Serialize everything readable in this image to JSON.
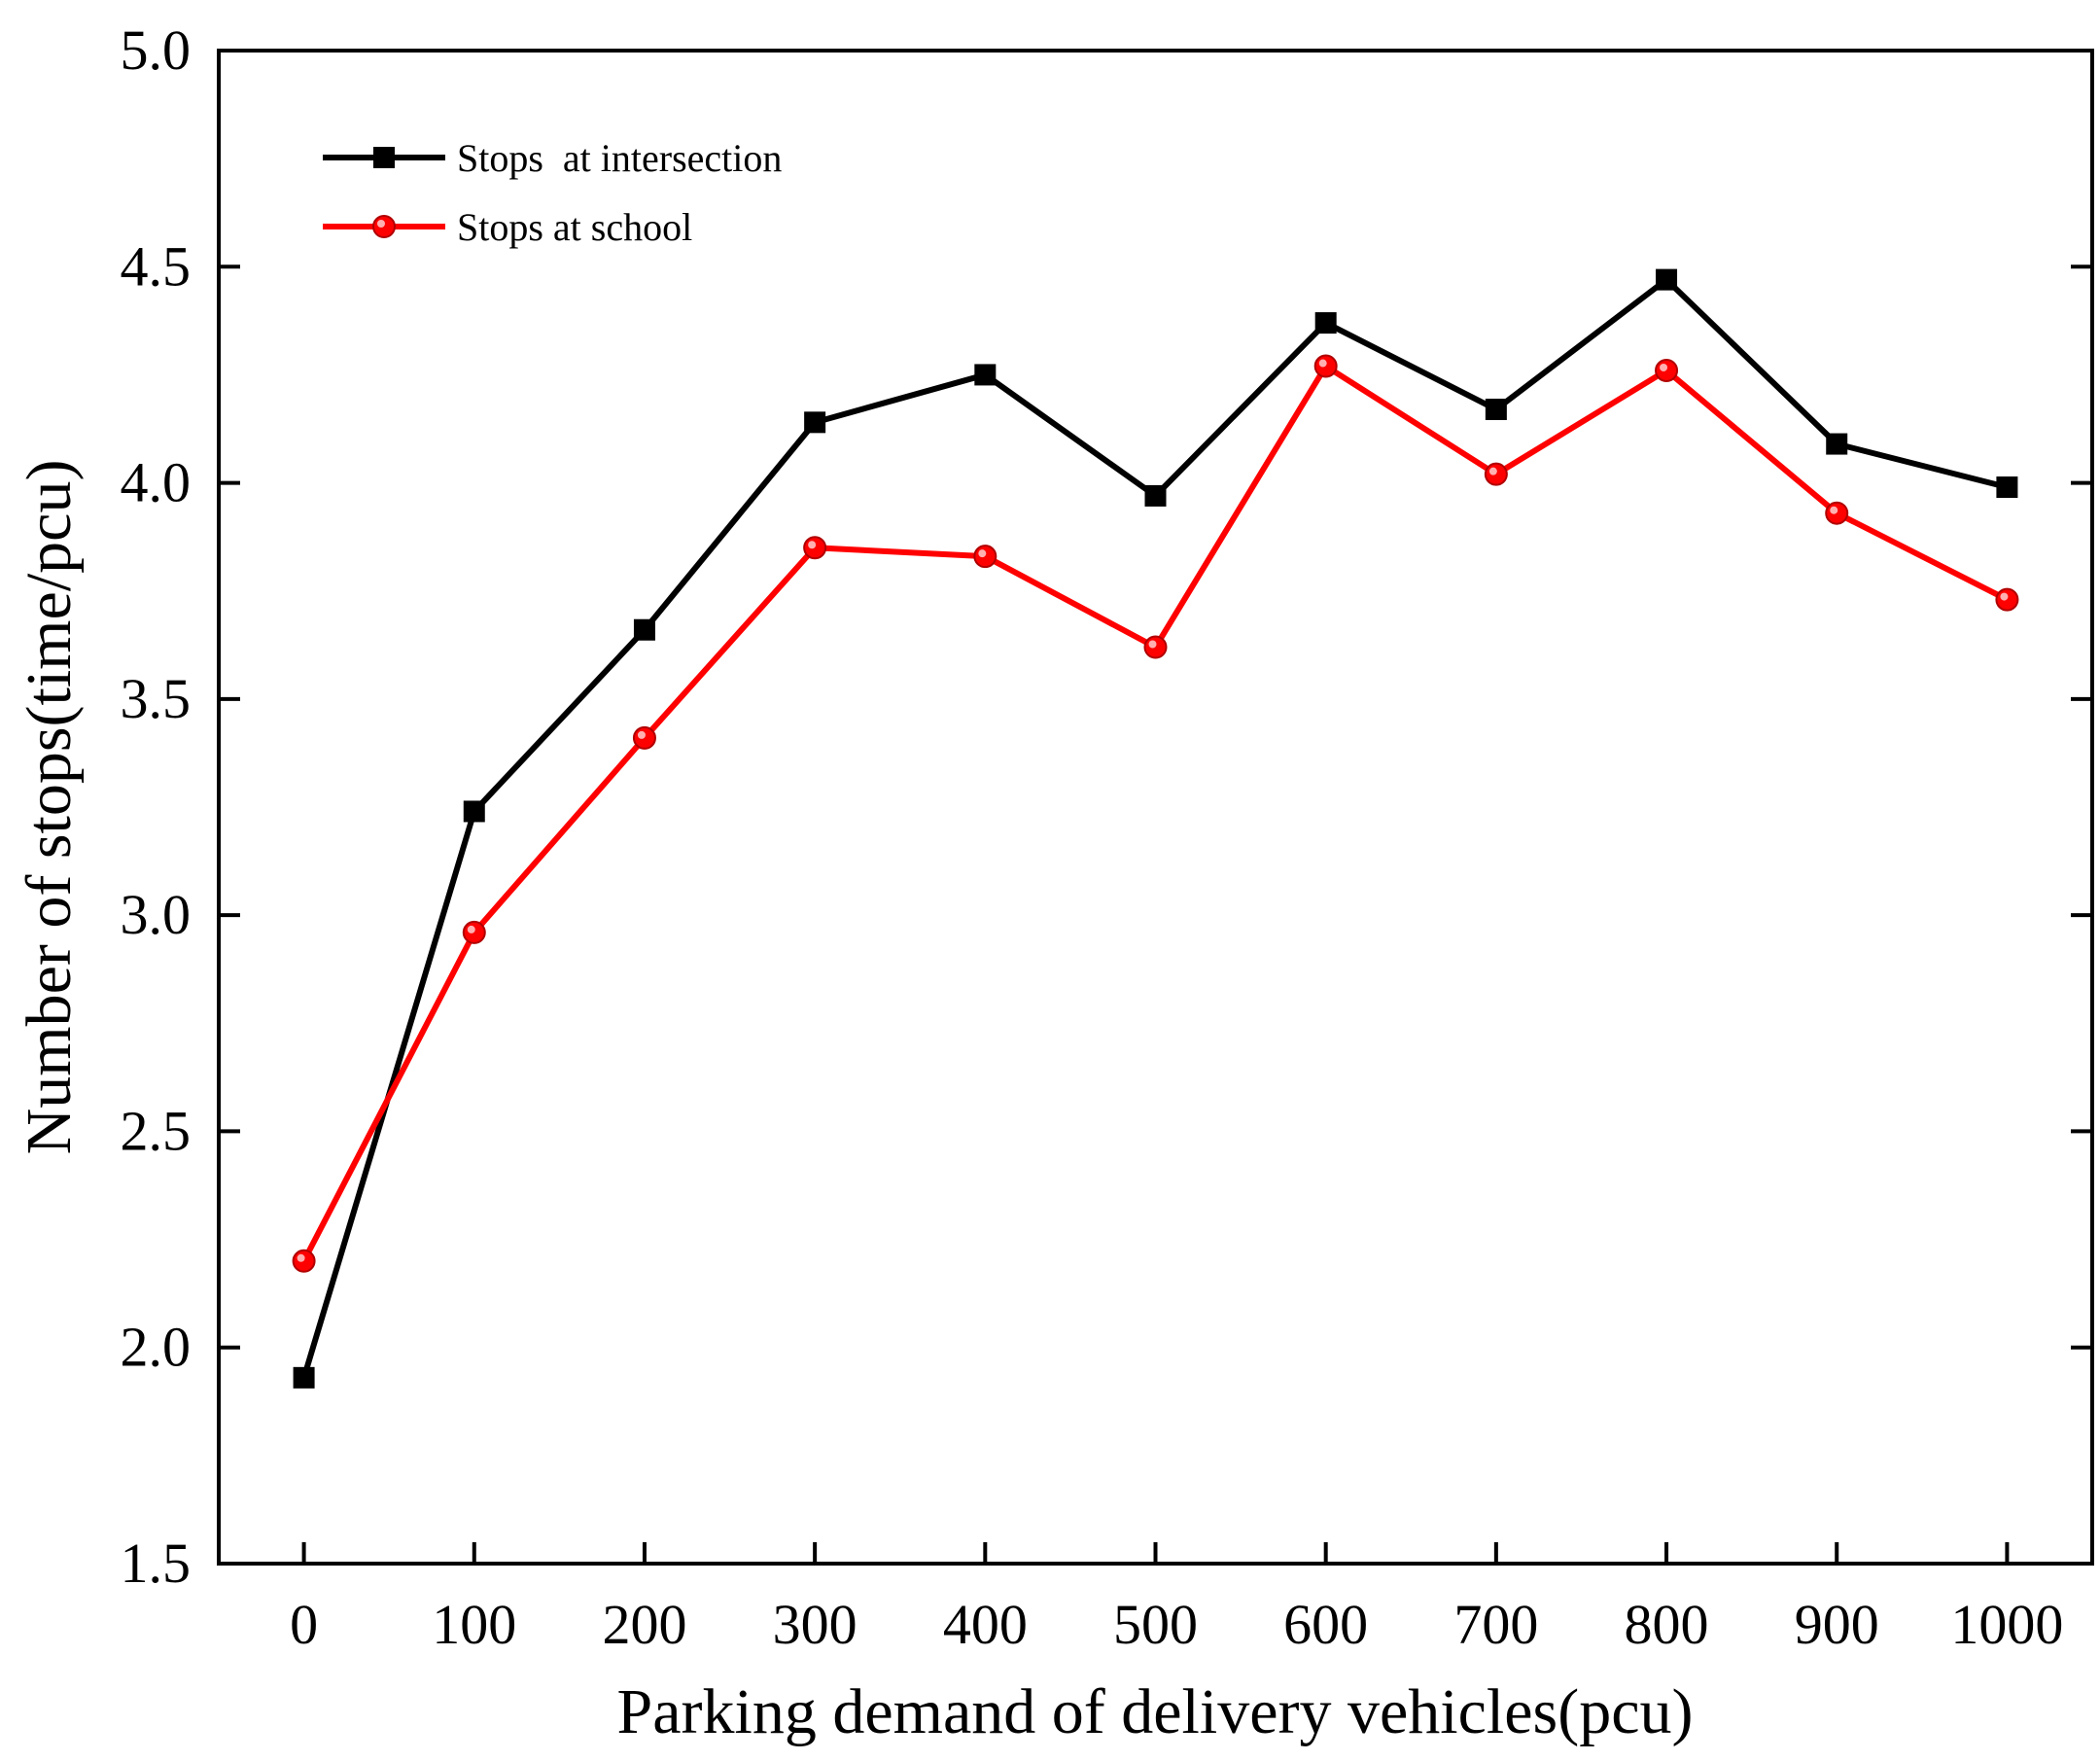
{
  "chart_data": {
    "type": "line",
    "title": "",
    "xlabel": "Parking demand of delivery vehicles(pcu)",
    "ylabel": "Number of stops(time/pcu)",
    "x": [
      0,
      100,
      200,
      300,
      400,
      500,
      600,
      700,
      800,
      900,
      1000
    ],
    "xlim": [
      -50,
      1050
    ],
    "ylim": [
      1.5,
      5.0
    ],
    "xticks": [
      0,
      100,
      200,
      300,
      400,
      500,
      600,
      700,
      800,
      900,
      1000
    ],
    "xtick_labels": [
      "0",
      "100",
      "200",
      "300",
      "400",
      "500",
      "600",
      "700",
      "800",
      "900",
      "1000"
    ],
    "yticks": [
      1.5,
      2.0,
      2.5,
      3.0,
      3.5,
      4.0,
      4.5,
      5.0
    ],
    "ytick_labels": [
      "1.5",
      "2.0",
      "2.5",
      "3.0",
      "3.5",
      "4.0",
      "4.5",
      "5.0"
    ],
    "grid": false,
    "legend_position": "top-left",
    "series": [
      {
        "name": "Stops  at intersection",
        "color": "#000000",
        "marker": "square",
        "values": [
          1.93,
          3.24,
          3.66,
          4.14,
          4.25,
          3.97,
          4.37,
          4.17,
          4.47,
          4.09,
          3.99
        ]
      },
      {
        "name": "Stops at school",
        "color": "#ff0000",
        "marker": "circle",
        "values": [
          2.2,
          2.96,
          3.41,
          3.85,
          3.83,
          3.62,
          4.27,
          4.02,
          4.26,
          3.93,
          3.73
        ]
      }
    ]
  }
}
